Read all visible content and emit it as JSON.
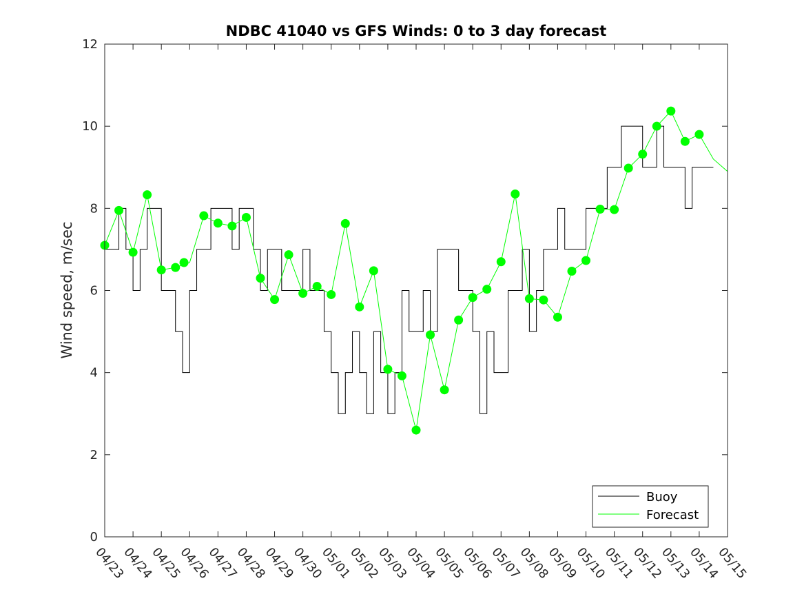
{
  "chart_data": {
    "type": "line",
    "title": "NDBC 41040 vs GFS Winds: 0 to 3 day forecast",
    "xlabel": "",
    "ylabel": "Wind speed, m/sec",
    "ylim": [
      0,
      12
    ],
    "yticks": [
      0,
      2,
      4,
      6,
      8,
      10,
      12
    ],
    "xlim": [
      0,
      22
    ],
    "xtick_labels": [
      "04/23",
      "04/24",
      "04/25",
      "04/26",
      "04/27",
      "04/28",
      "04/29",
      "04/30",
      "05/01",
      "05/02",
      "05/03",
      "05/04",
      "05/05",
      "05/06",
      "05/07",
      "05/08",
      "05/09",
      "05/10",
      "05/11",
      "05/12",
      "05/13",
      "05/14",
      "05/15"
    ],
    "grid": false,
    "legend_position": "bottom-right",
    "colors": {
      "buoy": "#000000",
      "forecast": "#00ff00",
      "axis": "#262626"
    },
    "legend": [
      "Buoy",
      "Forecast"
    ],
    "series": [
      {
        "name": "Buoy",
        "x": [
          0,
          0.25,
          0.5,
          0.75,
          1,
          1.25,
          1.5,
          1.75,
          2,
          2.25,
          2.5,
          2.75,
          3,
          3.25,
          3.5,
          3.75,
          4,
          4.25,
          4.5,
          4.75,
          5,
          5.25,
          5.5,
          5.75,
          6,
          6.25,
          6.5,
          6.75,
          7,
          7.25,
          7.5,
          7.75,
          8,
          8.25,
          8.5,
          8.75,
          9,
          9.25,
          9.5,
          9.75,
          10,
          10.25,
          10.5,
          10.75,
          11,
          11.25,
          11.5,
          11.75,
          12,
          12.25,
          12.5,
          12.75,
          13,
          13.25,
          13.5,
          13.75,
          14,
          14.25,
          14.5,
          14.75,
          15,
          15.25,
          15.5,
          15.75,
          16,
          16.25,
          16.5,
          16.75,
          17,
          17.25,
          17.5,
          17.75,
          18,
          18.25,
          18.5,
          18.75,
          19,
          19.25,
          19.5,
          19.75,
          20,
          20.25,
          20.5,
          20.75,
          21,
          21.25,
          21.5
        ],
        "values": [
          7,
          7,
          8,
          7,
          6,
          7,
          8,
          8,
          6,
          6,
          5,
          4,
          6,
          7,
          7,
          8,
          8,
          8,
          7,
          8,
          8,
          7,
          6,
          7,
          7,
          6,
          6,
          6,
          7,
          6,
          6,
          5,
          4,
          3,
          4,
          5,
          4,
          3,
          5,
          4,
          3,
          4,
          6,
          5,
          5,
          6,
          5,
          7,
          7,
          7,
          6,
          6,
          5,
          3,
          5,
          4,
          4,
          6,
          6,
          7,
          5,
          6,
          7,
          7,
          8,
          7,
          7,
          7,
          8,
          8,
          8,
          9,
          9,
          10,
          10,
          10,
          9,
          9,
          10,
          9,
          9,
          9,
          8,
          9,
          9,
          9,
          9
        ]
      },
      {
        "name": "Forecast",
        "x": [
          0,
          0.5,
          1,
          1.5,
          2,
          2.5,
          3,
          3.5,
          4,
          4.5,
          5,
          5.5,
          6,
          6.5,
          7,
          7.5,
          8,
          8.5,
          9,
          9.5,
          10,
          10.5,
          11,
          11.5,
          12,
          12.5,
          13,
          13.5,
          14,
          14.5,
          15,
          15.5,
          16,
          16.5,
          17,
          17.5,
          18,
          18.5,
          19,
          19.5,
          20,
          20.5,
          21,
          21.5,
          22
        ],
        "values": [
          7.1,
          7.95,
          6.93,
          8.33,
          6.5,
          6.56,
          6.68,
          7.82,
          7.64,
          7.57,
          7.78,
          6.3,
          5.78,
          6.87,
          5.93,
          6.1,
          5.9,
          7.63,
          5.6,
          6.48,
          4.08,
          3.92,
          2.6,
          4.92,
          3.58,
          5.28,
          5.83,
          6.03,
          6.7,
          8.35,
          5.8,
          5.77,
          5.35,
          6.47,
          6.73,
          7.98,
          7.97,
          8.98,
          9.32,
          10.0,
          10.37,
          9.63,
          9.8,
          9.2,
          8.9
        ]
      }
    ],
    "markers": {
      "name": "Forecast",
      "x": [
        0,
        0.5,
        1,
        1.5,
        2,
        2.5,
        2.8,
        3.5,
        4,
        4.5,
        5,
        5.5,
        6,
        6.5,
        7,
        7.5,
        8,
        8.5,
        9,
        9.5,
        10,
        10.5,
        11,
        11.5,
        12,
        12.5,
        13,
        13.5,
        14,
        14.5,
        15,
        15.5,
        16,
        16.5,
        17,
        17.5,
        18,
        18.5,
        19,
        19.5,
        20,
        20.5,
        21
      ],
      "values": [
        7.1,
        7.95,
        6.93,
        8.33,
        6.5,
        6.56,
        6.68,
        7.82,
        7.64,
        7.57,
        7.78,
        6.3,
        5.78,
        6.87,
        5.93,
        6.1,
        5.9,
        7.63,
        5.6,
        6.48,
        4.08,
        3.92,
        2.6,
        4.92,
        3.58,
        5.28,
        5.83,
        6.03,
        6.7,
        8.35,
        5.8,
        5.77,
        5.35,
        6.47,
        6.73,
        7.98,
        7.97,
        8.98,
        9.32,
        10.0,
        10.37,
        9.63,
        9.8
      ]
    }
  }
}
